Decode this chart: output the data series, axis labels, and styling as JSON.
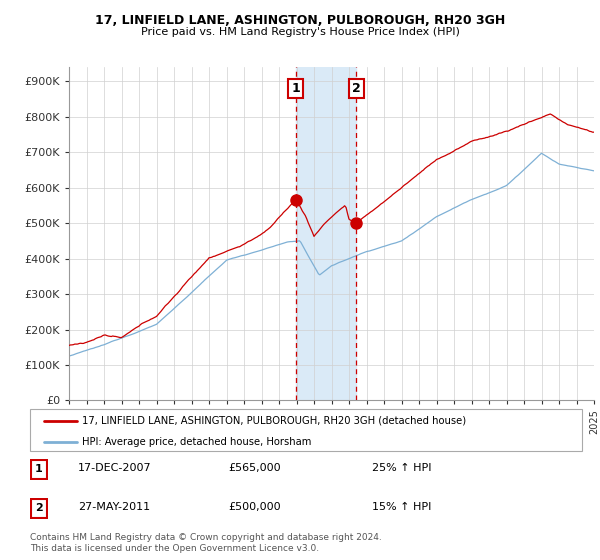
{
  "title1": "17, LINFIELD LANE, ASHINGTON, PULBOROUGH, RH20 3GH",
  "title2": "Price paid vs. HM Land Registry's House Price Index (HPI)",
  "yticks": [
    0,
    100000,
    200000,
    300000,
    400000,
    500000,
    600000,
    700000,
    800000,
    900000
  ],
  "ytick_labels": [
    "£0",
    "£100K",
    "£200K",
    "£300K",
    "£400K",
    "£500K",
    "£600K",
    "£700K",
    "£800K",
    "£900K"
  ],
  "ylim": [
    0,
    940000
  ],
  "purchase1_year": 2007.96,
  "purchase1_price": 565000,
  "purchase2_year": 2011.4,
  "purchase2_price": 500000,
  "red_color": "#cc0000",
  "blue_color": "#7eb0d5",
  "shaded_color": "#daeaf7",
  "legend_line1": "17, LINFIELD LANE, ASHINGTON, PULBOROUGH, RH20 3GH (detached house)",
  "legend_line2": "HPI: Average price, detached house, Horsham",
  "footer": "Contains HM Land Registry data © Crown copyright and database right 2024.\nThis data is licensed under the Open Government Licence v3.0.",
  "table_row1": [
    "1",
    "17-DEC-2007",
    "£565,000",
    "25% ↑ HPI"
  ],
  "table_row2": [
    "2",
    "27-MAY-2011",
    "£500,000",
    "15% ↑ HPI"
  ]
}
